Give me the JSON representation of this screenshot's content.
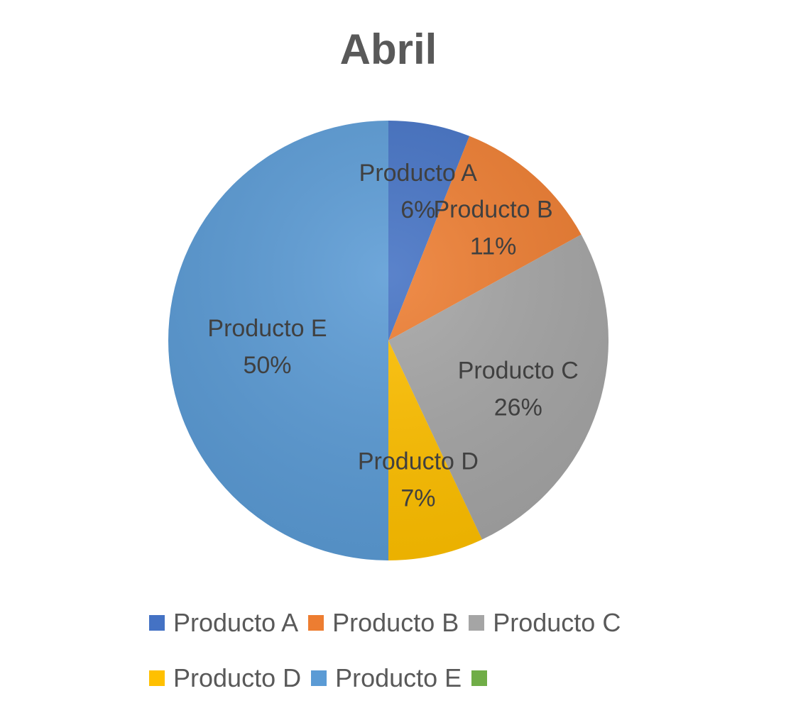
{
  "chart_data": {
    "type": "pie",
    "title": "Abril",
    "slices": [
      {
        "name": "Producto A",
        "value": 6,
        "label": "Producto A",
        "percent_label": "6%",
        "color": "#4472C4"
      },
      {
        "name": "Producto B",
        "value": 11,
        "label": "Producto B",
        "percent_label": "11%",
        "color": "#ED7D31"
      },
      {
        "name": "Producto C",
        "value": 26,
        "label": "Producto C",
        "percent_label": "26%",
        "color": "#A5A5A5"
      },
      {
        "name": "Producto D",
        "value": 7,
        "label": "Producto D",
        "percent_label": "7%",
        "color": "#FFC000"
      },
      {
        "name": "Producto E",
        "value": 50,
        "label": "Producto E",
        "percent_label": "50%",
        "color": "#5B9BD5"
      }
    ],
    "legend": {
      "placement": "bottom",
      "entries": [
        {
          "label": "Producto A",
          "color": "#4472C4"
        },
        {
          "label": "Producto B",
          "color": "#ED7D31"
        },
        {
          "label": "Producto C",
          "color": "#A5A5A5"
        },
        {
          "label": "Producto D",
          "color": "#FFC000"
        },
        {
          "label": "Producto E",
          "color": "#5B9BD5"
        },
        {
          "label": "",
          "color": "#70AD47"
        }
      ]
    }
  }
}
